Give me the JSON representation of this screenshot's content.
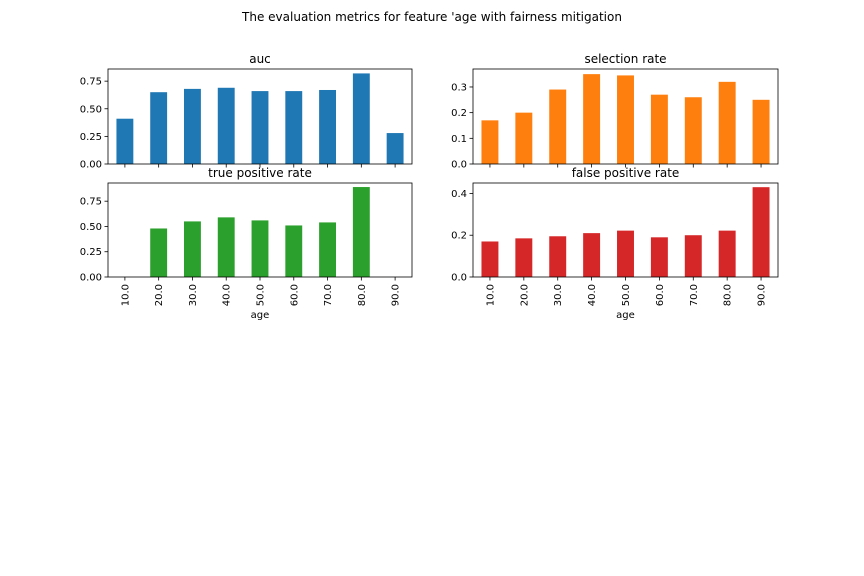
{
  "figure": {
    "suptitle": "The evaluation metrics for feature 'age with fairness mitigation"
  },
  "chart_data": [
    {
      "type": "bar",
      "title": "auc",
      "categories": [
        "10.0",
        "20.0",
        "30.0",
        "40.0",
        "50.0",
        "60.0",
        "70.0",
        "80.0",
        "90.0"
      ],
      "values": [
        0.41,
        0.65,
        0.68,
        0.69,
        0.66,
        0.66,
        0.67,
        0.82,
        0.28
      ],
      "ylim": [
        0,
        0.86
      ],
      "yticks": [
        "0.00",
        "0.25",
        "0.50",
        "0.75"
      ],
      "ytick_values": [
        0,
        0.25,
        0.5,
        0.75
      ],
      "xlabel": "",
      "color": "#1f77b4",
      "show_xticklabels": false
    },
    {
      "type": "bar",
      "title": "selection rate",
      "categories": [
        "10.0",
        "20.0",
        "30.0",
        "40.0",
        "50.0",
        "60.0",
        "70.0",
        "80.0",
        "90.0"
      ],
      "values": [
        0.17,
        0.2,
        0.29,
        0.35,
        0.345,
        0.27,
        0.26,
        0.32,
        0.25
      ],
      "ylim": [
        0,
        0.37
      ],
      "yticks": [
        "0.0",
        "0.1",
        "0.2",
        "0.3"
      ],
      "ytick_values": [
        0,
        0.1,
        0.2,
        0.3
      ],
      "xlabel": "",
      "color": "#ff7f0e",
      "show_xticklabels": false
    },
    {
      "type": "bar",
      "title": "true positive rate",
      "categories": [
        "10.0",
        "20.0",
        "30.0",
        "40.0",
        "50.0",
        "60.0",
        "70.0",
        "80.0",
        "90.0"
      ],
      "values": [
        0,
        0.48,
        0.55,
        0.59,
        0.56,
        0.51,
        0.54,
        0.89,
        0
      ],
      "ylim": [
        0,
        0.93
      ],
      "yticks": [
        "0.00",
        "0.25",
        "0.50",
        "0.75"
      ],
      "ytick_values": [
        0,
        0.25,
        0.5,
        0.75
      ],
      "xlabel": "age",
      "color": "#2ca02c",
      "show_xticklabels": true
    },
    {
      "type": "bar",
      "title": "false positive rate",
      "categories": [
        "10.0",
        "20.0",
        "30.0",
        "40.0",
        "50.0",
        "60.0",
        "70.0",
        "80.0",
        "90.0"
      ],
      "values": [
        0.17,
        0.185,
        0.195,
        0.21,
        0.222,
        0.19,
        0.2,
        0.222,
        0.43
      ],
      "ylim": [
        0,
        0.45
      ],
      "yticks": [
        "0.0",
        "0.2",
        "0.4"
      ],
      "ytick_values": [
        0,
        0.2,
        0.4
      ],
      "xlabel": "age",
      "color": "#d62728",
      "show_xticklabels": true
    }
  ]
}
